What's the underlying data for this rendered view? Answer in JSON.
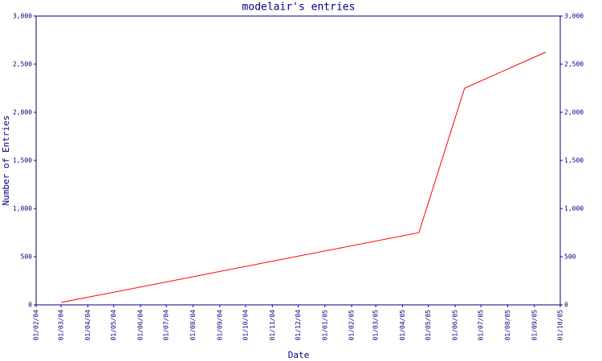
{
  "chart_data": {
    "type": "line",
    "title": "modelair's entries",
    "x_label": "Date",
    "y_label": "Number of Entries",
    "x": [
      "2004-03-01",
      "2005-04-20",
      "2005-06-12",
      "2005-09-14"
    ],
    "series": [
      {
        "color": "#ff0000",
        "values": [
          25,
          750,
          2250,
          2625
        ]
      }
    ],
    "xlim": [
      "2004-02-01",
      "2005-10-01"
    ],
    "xticks": [
      {
        "value": "2004-02-01",
        "label": "01/02/04"
      },
      {
        "value": "2004-03-01",
        "label": "01/03/04"
      },
      {
        "value": "2004-04-01",
        "label": "01/04/04"
      },
      {
        "value": "2004-05-01",
        "label": "01/05/04"
      },
      {
        "value": "2004-06-01",
        "label": "01/06/04"
      },
      {
        "value": "2004-07-01",
        "label": "01/07/04"
      },
      {
        "value": "2004-08-01",
        "label": "01/08/04"
      },
      {
        "value": "2004-09-01",
        "label": "01/09/04"
      },
      {
        "value": "2004-10-01",
        "label": "01/10/04"
      },
      {
        "value": "2004-11-01",
        "label": "01/11/04"
      },
      {
        "value": "2004-12-01",
        "label": "01/12/04"
      },
      {
        "value": "2005-01-01",
        "label": "01/01/05"
      },
      {
        "value": "2005-02-01",
        "label": "01/02/05"
      },
      {
        "value": "2005-03-01",
        "label": "01/03/05"
      },
      {
        "value": "2005-04-01",
        "label": "01/04/05"
      },
      {
        "value": "2005-05-01",
        "label": "01/05/05"
      },
      {
        "value": "2005-06-01",
        "label": "01/06/05"
      },
      {
        "value": "2005-07-01",
        "label": "01/07/05"
      },
      {
        "value": "2005-08-01",
        "label": "01/08/05"
      },
      {
        "value": "2005-09-01",
        "label": "01/09/05"
      },
      {
        "value": "2005-10-01",
        "label": "01/10/05"
      }
    ],
    "ylim": [
      0,
      3000
    ],
    "yticks": [
      0,
      500,
      {
        "value": 1000,
        "label": "1,000"
      },
      {
        "value": 1500,
        "label": "1,500"
      },
      {
        "value": 2000,
        "label": "2,000"
      },
      {
        "value": 2500,
        "label": "2,500"
      },
      {
        "value": 3000,
        "label": "3,000"
      }
    ],
    "axis_color": "#000080"
  }
}
